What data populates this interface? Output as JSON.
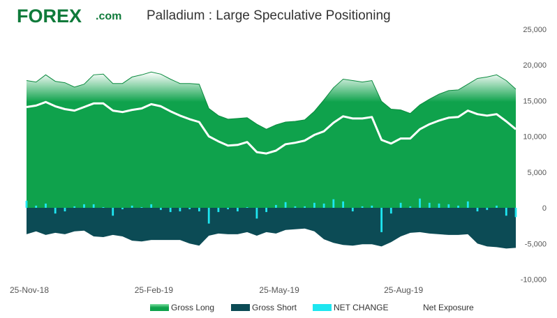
{
  "brand": {
    "logo_main": "FOREX",
    "logo_suffix": ".com",
    "color": "#0f7a3a"
  },
  "chart_data": {
    "type": "area",
    "title": "Palladium : Large Speculative Positioning",
    "x_tick_labels": [
      "25-Nov-18",
      "25-Feb-19",
      "25-May-19",
      "25-Aug-19"
    ],
    "x_tick_index": [
      0,
      13,
      26,
      39
    ],
    "y_ticks": [
      25000,
      20000,
      15000,
      10000,
      5000,
      0,
      -5000,
      -10000
    ],
    "y_tick_labels": [
      "25,000",
      "20,000",
      "15,000",
      "10,000",
      "5,000",
      "0",
      "-5,000",
      "-10,000"
    ],
    "ylim": [
      -10000,
      25000
    ],
    "y_axis_side": "right",
    "grid": false,
    "legend_position": "bottom",
    "colors": {
      "gross_long": "#0fa24c",
      "gross_long_top": "#ffffff",
      "gross_short": "#0c4b55",
      "net_change": "#1ee6f0",
      "net_exposure": "#ffffff"
    },
    "series": [
      {
        "name": "Gross Long",
        "kind": "area",
        "values": [
          17800,
          17600,
          18600,
          17700,
          17500,
          16900,
          17300,
          18600,
          18700,
          17400,
          17400,
          18300,
          18600,
          19000,
          18700,
          18000,
          17400,
          17400,
          17300,
          13900,
          12900,
          12400,
          12500,
          12600,
          11700,
          11000,
          11600,
          12000,
          12100,
          12300,
          13500,
          15100,
          16800,
          18000,
          17800,
          17600,
          17800,
          14900,
          13800,
          13700,
          13200,
          14400,
          15200,
          15900,
          16400,
          16500,
          17300,
          18100,
          18300,
          18600,
          17800,
          16600
        ]
      },
      {
        "name": "Gross Short",
        "kind": "area",
        "values": [
          -3700,
          -3300,
          -3800,
          -3500,
          -3700,
          -3300,
          -3200,
          -4000,
          -4100,
          -3800,
          -4000,
          -4600,
          -4700,
          -4500,
          -4500,
          -4500,
          -4500,
          -5000,
          -5300,
          -3900,
          -3600,
          -3700,
          -3700,
          -3400,
          -3900,
          -3400,
          -3600,
          -3100,
          -3000,
          -2900,
          -3300,
          -4400,
          -4900,
          -5200,
          -5300,
          -5100,
          -5100,
          -5400,
          -4800,
          -4000,
          -3500,
          -3400,
          -3600,
          -3700,
          -3800,
          -3800,
          -3700,
          -5000,
          -5400,
          -5500,
          -5700,
          -5600
        ]
      },
      {
        "name": "NET CHANGE",
        "kind": "bar",
        "values": [
          1000,
          300,
          600,
          -800,
          -500,
          200,
          500,
          500,
          100,
          -1100,
          -200,
          300,
          100,
          500,
          -300,
          -600,
          -500,
          -200,
          -500,
          -2200,
          -600,
          -200,
          -500,
          100,
          -1500,
          -600,
          400,
          800,
          200,
          200,
          700,
          600,
          1200,
          900,
          -500,
          200,
          300,
          -3400,
          -800,
          700,
          200,
          1300,
          700,
          600,
          500,
          300,
          900,
          -500,
          -300,
          300,
          -1100,
          -1300
        ]
      },
      {
        "name": "Net Exposure",
        "kind": "line",
        "values": [
          14100,
          14300,
          14800,
          14200,
          13800,
          13600,
          14100,
          14600,
          14600,
          13600,
          13400,
          13700,
          13900,
          14500,
          14200,
          13500,
          12900,
          12400,
          12000,
          10000,
          9300,
          8700,
          8800,
          9200,
          7800,
          7600,
          8000,
          8900,
          9100,
          9400,
          10200,
          10700,
          11900,
          12800,
          12500,
          12500,
          12700,
          9500,
          9000,
          9700,
          9700,
          11000,
          11700,
          12200,
          12600,
          12700,
          13600,
          13100,
          12900,
          13100,
          12100,
          11000
        ]
      }
    ]
  }
}
